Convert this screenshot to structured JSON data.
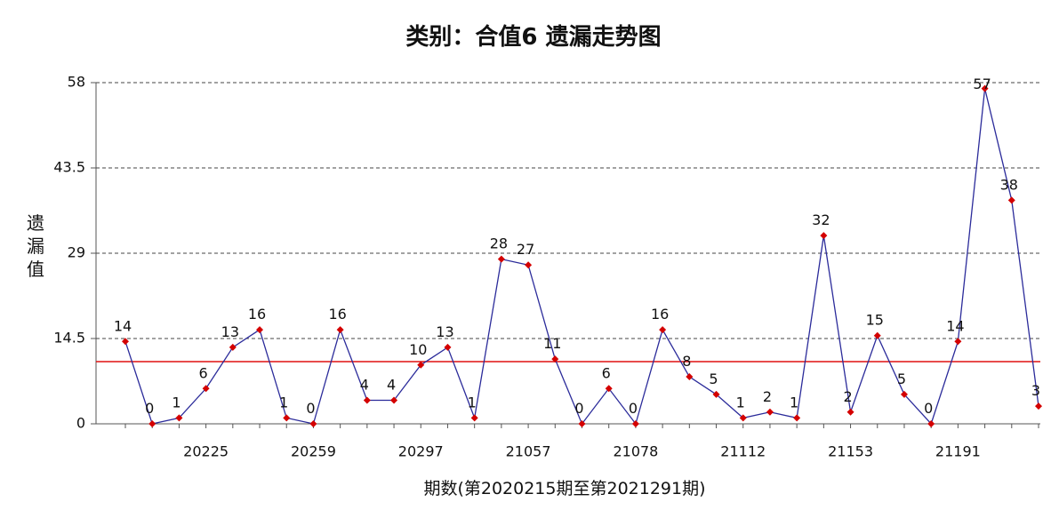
{
  "chart_data": {
    "type": "line",
    "title": "类别：合值6 遗漏走势图",
    "y_label": "遗漏值",
    "x_label": "期数(第2020215期至第2021291期)",
    "categories": [
      null,
      null,
      null,
      "20225",
      null,
      null,
      null,
      "20259",
      null,
      null,
      null,
      "20297",
      null,
      null,
      null,
      "21057",
      null,
      null,
      null,
      "21078",
      null,
      null,
      null,
      "21112",
      null,
      null,
      null,
      "21153",
      null,
      null,
      null,
      "21191",
      null,
      null,
      null
    ],
    "series": [
      {
        "color": "#2b2b9a",
        "marker_color": "#d40000",
        "values": [
          14,
          0,
          1,
          6,
          13,
          16,
          1,
          0,
          16,
          4,
          4,
          10,
          13,
          1,
          28,
          27,
          11,
          0,
          6,
          0,
          16,
          8,
          5,
          1,
          2,
          1,
          32,
          2,
          15,
          5,
          0,
          14,
          57,
          38,
          3
        ]
      }
    ],
    "average_line": {
      "value": 10.57,
      "color": "#e01010"
    },
    "ylim": [
      0,
      58
    ],
    "yticks": [
      0,
      14.5,
      29,
      43.5,
      58
    ],
    "grid": true
  }
}
